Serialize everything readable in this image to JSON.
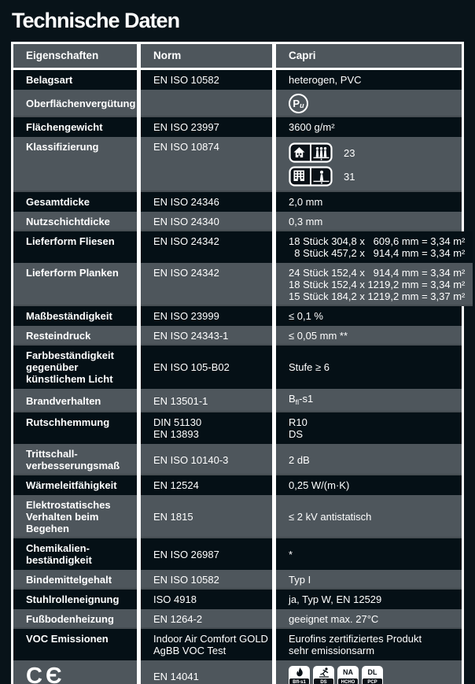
{
  "page": {
    "title": "Technische Daten"
  },
  "colors": {
    "page_background": "#081319",
    "row_dark": "#051016",
    "row_gray": "#4e565c",
    "separator": "#ffffff",
    "text": "#ffffff"
  },
  "table": {
    "headers": [
      "Eigenschaften",
      "Norm",
      "Capri"
    ],
    "rows": [
      {
        "tone": "dark",
        "label": [
          "Belagsart"
        ],
        "norm": [
          "EN ISO 10582"
        ],
        "value": [
          "heterogen, PVC"
        ]
      },
      {
        "tone": "gray",
        "label": [
          "Oberflächenvergütung"
        ],
        "norm": [],
        "pu": {
          "main": "P",
          "sub": "u",
          "icon": "pu-surface-treatment-icon"
        }
      },
      {
        "tone": "dark",
        "label": [
          "Flächengewicht"
        ],
        "norm": [
          "EN ISO 23997"
        ],
        "value": [
          "3600 g/m²"
        ]
      },
      {
        "tone": "gray",
        "valign": "top",
        "label": [
          "Klassifizierung"
        ],
        "norm": [
          "EN ISO 10874"
        ],
        "classification": [
          {
            "icon": "residential-class-icon",
            "class": "23"
          },
          {
            "icon": "commercial-class-icon",
            "class": "31"
          }
        ]
      },
      {
        "tone": "dark",
        "label": [
          "Gesamtdicke"
        ],
        "norm": [
          "EN ISO 24346"
        ],
        "value": [
          "2,0 mm"
        ]
      },
      {
        "tone": "gray",
        "label": [
          "Nutzschichtdicke"
        ],
        "norm": [
          "EN ISO 24340"
        ],
        "value": [
          "0,3 mm"
        ]
      },
      {
        "tone": "dark",
        "valign": "top",
        "label": [
          "Lieferform Fliesen"
        ],
        "norm": [
          "EN ISO 24342"
        ],
        "value": [
          "18 Stück 304,8 x   609,6 mm = 3,34 m²",
          "  8 Stück 457,2 x   914,4 mm = 3,34 m²"
        ]
      },
      {
        "tone": "gray",
        "valign": "top",
        "label": [
          "Lieferform Planken"
        ],
        "norm": [
          "EN ISO 24342"
        ],
        "value": [
          "24 Stück 152,4 x   914,4 mm = 3,34 m²",
          "18 Stück 152,4 x 1219,2 mm = 3,34 m²",
          "15 Stück 184,2 x 1219,2 mm = 3,37 m²"
        ]
      },
      {
        "tone": "dark",
        "label": [
          "Maßbeständigkeit"
        ],
        "norm": [
          "EN ISO 23999"
        ],
        "value": [
          "≤ 0,1 %"
        ]
      },
      {
        "tone": "gray",
        "label": [
          "Resteindruck"
        ],
        "norm": [
          "EN ISO 24343-1"
        ],
        "value": [
          "≤ 0,05 mm **"
        ]
      },
      {
        "tone": "dark",
        "label": [
          "Farbbeständigkeit",
          "gegenüber",
          "künstlichem Licht"
        ],
        "norm": [
          "EN ISO 105-B02"
        ],
        "value": [
          "Stufe ≥ 6"
        ]
      },
      {
        "tone": "gray",
        "label": [
          "Brandverhalten"
        ],
        "norm": [
          "EN 13501-1"
        ],
        "value_rich": {
          "prefix": "B",
          "sub": "fl",
          "suffix": "-s1"
        }
      },
      {
        "tone": "dark",
        "valign": "top",
        "label": [
          "Rutschhemmung"
        ],
        "norm": [
          "DIN 51130",
          "EN 13893"
        ],
        "value": [
          "R10",
          "DS"
        ]
      },
      {
        "tone": "gray",
        "label": [
          "Trittschall-",
          "verbesserungsmaß"
        ],
        "norm": [
          "EN ISO 10140-3"
        ],
        "value": [
          "2 dB"
        ]
      },
      {
        "tone": "dark",
        "label": [
          "Wärmeleitfähigkeit"
        ],
        "norm": [
          "EN 12524"
        ],
        "value": [
          "0,25 W/(m·K)"
        ]
      },
      {
        "tone": "gray",
        "label": [
          "Elektrostatisches",
          "Verhalten beim",
          "Begehen"
        ],
        "norm": [
          "EN 1815"
        ],
        "value": [
          "≤ 2 kV antistatisch"
        ]
      },
      {
        "tone": "dark",
        "label": [
          "Chemikalien-",
          "beständigkeit"
        ],
        "norm": [
          "EN ISO 26987"
        ],
        "value": [
          "*"
        ]
      },
      {
        "tone": "gray",
        "label": [
          "Bindemittelgehalt"
        ],
        "norm": [
          "EN ISO 10582"
        ],
        "value": [
          "Typ I"
        ]
      },
      {
        "tone": "dark",
        "label": [
          "Stuhlrolleneignung"
        ],
        "norm": [
          "ISO 4918"
        ],
        "value": [
          "ja, Typ W, EN 12529"
        ]
      },
      {
        "tone": "gray",
        "label": [
          "Fußbodenheizung"
        ],
        "norm": [
          "EN 1264-2"
        ],
        "value": [
          "geeignet max. 27°C"
        ]
      },
      {
        "tone": "dark",
        "valign": "top",
        "label": [
          "VOC Emissionen"
        ],
        "norm": [
          "Indoor Air Comfort GOLD",
          "AgBB VOC Test"
        ],
        "value": [
          "Eurofins zertifiziertes Produkt",
          "sehr emissionsarm"
        ]
      },
      {
        "tone": "gray",
        "ce_text": "CЄ",
        "ce_icon": "ce-mark-icon",
        "norm": [
          "EN 14041"
        ],
        "cert_icons": [
          {
            "name": "fire-rating-icon",
            "glyph": "flame",
            "label": "Bfl-s1"
          },
          {
            "name": "slip-rating-icon",
            "glyph": "slip-person",
            "label": "DS"
          },
          {
            "name": "formaldehyde-rating-icon",
            "top": "NA",
            "bottom": "HCHO"
          },
          {
            "name": "pcp-rating-icon",
            "top": "DL",
            "bottom": "PCP"
          }
        ]
      }
    ]
  }
}
